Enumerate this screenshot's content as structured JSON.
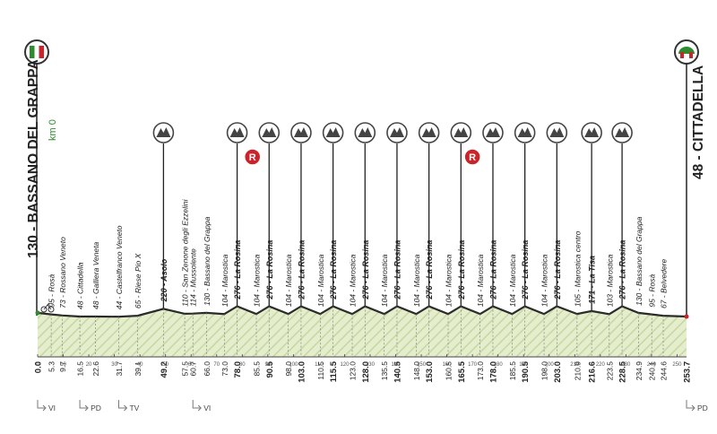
{
  "start_city": "130 - BASSANO DEL GRAPPA",
  "finish_city": "48 - CITTADELLA",
  "km0_label": "km 0",
  "climb_icon": "mountain-icon",
  "refresh_icon": "feed-zone-icon",
  "colors": {
    "green": "#2e8b2e",
    "red": "#cc2229",
    "profile_fill": "#e4edcc",
    "hatch": "#c7d6a2",
    "ink": "#222222"
  },
  "chart_data": {
    "type": "area",
    "xlim": [
      0,
      253.7
    ],
    "x_ticks": [
      "0",
      "10",
      "20",
      "30",
      "40",
      "50",
      "60",
      "70",
      "80",
      "90",
      "100",
      "110",
      "120",
      "130",
      "140",
      "150",
      "160",
      "170",
      "180",
      "190",
      "200",
      "210",
      "220",
      "230",
      "240",
      "250"
    ],
    "points": [
      {
        "km": "0.0",
        "alt": 130,
        "label": "",
        "bold": true
      },
      {
        "km": "5.3",
        "alt": 95,
        "label": "95 - Rosà",
        "bold": false
      },
      {
        "km": "9.7",
        "alt": 73,
        "label": "73 - Rossano Veneto",
        "bold": false
      },
      {
        "km": "16.5",
        "alt": 48,
        "label": "48 - Cittadella",
        "bold": false
      },
      {
        "km": "22.6",
        "alt": 48,
        "label": "48 - Galliera Veneta",
        "bold": false
      },
      {
        "km": "31.7",
        "alt": 44,
        "label": "44 - Castelfranco Veneto",
        "bold": false
      },
      {
        "km": "39.1",
        "alt": 65,
        "label": "65 - Riese Pio X",
        "bold": false
      },
      {
        "km": "49.2",
        "alt": 220,
        "label": "220 - Asolo",
        "bold": true
      },
      {
        "km": "57.5",
        "alt": 110,
        "label": "110 - San Zenone degli Ezzelini",
        "bold": false
      },
      {
        "km": "60.7",
        "alt": 114,
        "label": "114 - Mussolente",
        "bold": false
      },
      {
        "km": "66.0",
        "alt": 130,
        "label": "130 - Bassano del Grappa",
        "bold": false
      },
      {
        "km": "73.0",
        "alt": 104,
        "label": "104 - Marostica",
        "bold": false
      },
      {
        "km": "78.0",
        "alt": 276,
        "label": "276 - La Rosina",
        "bold": true
      },
      {
        "km": "85.5",
        "alt": 104,
        "label": "104 - Marostica",
        "bold": false
      },
      {
        "km": "90.5",
        "alt": 276,
        "label": "276 - La Rosina",
        "bold": true
      },
      {
        "km": "98.0",
        "alt": 104,
        "label": "104 - Marostica",
        "bold": false
      },
      {
        "km": "103.0",
        "alt": 276,
        "label": "276 - La Rosina",
        "bold": true
      },
      {
        "km": "110.5",
        "alt": 104,
        "label": "104 - Marostica",
        "bold": false
      },
      {
        "km": "115.5",
        "alt": 276,
        "label": "276 - La Rosina",
        "bold": true
      },
      {
        "km": "123.0",
        "alt": 104,
        "label": "104 - Marostica",
        "bold": false
      },
      {
        "km": "128.0",
        "alt": 276,
        "label": "276 - La Rosina",
        "bold": true
      },
      {
        "km": "135.5",
        "alt": 104,
        "label": "104 - Marostica",
        "bold": false
      },
      {
        "km": "140.5",
        "alt": 276,
        "label": "276 - La Rosina",
        "bold": true
      },
      {
        "km": "148.0",
        "alt": 104,
        "label": "104 - Marostica",
        "bold": false
      },
      {
        "km": "153.0",
        "alt": 276,
        "label": "276 - La Rosina",
        "bold": true
      },
      {
        "km": "160.5",
        "alt": 104,
        "label": "104 - Marostica",
        "bold": false
      },
      {
        "km": "165.5",
        "alt": 276,
        "label": "276 - La Rosina",
        "bold": true
      },
      {
        "km": "173.0",
        "alt": 104,
        "label": "104 - Marostica",
        "bold": false
      },
      {
        "km": "178.0",
        "alt": 276,
        "label": "276 - La Rosina",
        "bold": true
      },
      {
        "km": "185.5",
        "alt": 104,
        "label": "104 - Marostica",
        "bold": false
      },
      {
        "km": "190.5",
        "alt": 276,
        "label": "276 - La Rosina",
        "bold": true
      },
      {
        "km": "198.0",
        "alt": 104,
        "label": "104 - Marostica",
        "bold": false
      },
      {
        "km": "203.0",
        "alt": 276,
        "label": "276 - La Rosina",
        "bold": true
      },
      {
        "km": "210.9",
        "alt": 105,
        "label": "105 - Marostica centro",
        "bold": false
      },
      {
        "km": "216.6",
        "alt": 171,
        "label": "171 - La Tisa",
        "bold": true
      },
      {
        "km": "223.5",
        "alt": 103,
        "label": "103 - Marostica",
        "bold": false
      },
      {
        "km": "228.5",
        "alt": 276,
        "label": "276 - La Rosina",
        "bold": true
      },
      {
        "km": "234.9",
        "alt": 130,
        "label": "130 - Bassano del Grappa",
        "bold": false
      },
      {
        "km": "240.1",
        "alt": 95,
        "label": "95 - Rosà",
        "bold": false
      },
      {
        "km": "244.6",
        "alt": 67,
        "label": "67 - Belvedere",
        "bold": false
      },
      {
        "km": "253.7",
        "alt": 48,
        "label": "",
        "bold": true
      }
    ],
    "climbs_km": [
      49.2,
      78.0,
      90.5,
      103.0,
      115.5,
      128.0,
      140.5,
      153.0,
      165.5,
      178.0,
      190.5,
      203.0,
      216.6,
      228.5
    ],
    "feed_zones_km": [
      84.0,
      170.0
    ],
    "route_markers": [
      {
        "km": 0,
        "label": "VI"
      },
      {
        "km": 16.5,
        "label": "PD"
      },
      {
        "km": 31.7,
        "label": "TV"
      },
      {
        "km": 60.7,
        "label": "VI"
      },
      {
        "km": 253.7,
        "label": "PD"
      }
    ]
  }
}
